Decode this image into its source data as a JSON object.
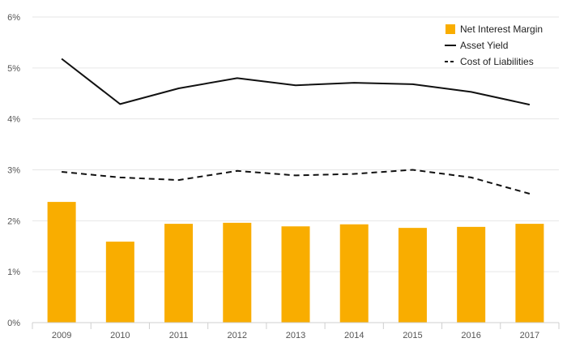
{
  "chart_data": {
    "type": "bar+line",
    "title": "",
    "xlabel": "",
    "ylabel": "",
    "categories": [
      "2009",
      "2010",
      "2011",
      "2012",
      "2013",
      "2014",
      "2015",
      "2016",
      "2017"
    ],
    "ylim": [
      0,
      6
    ],
    "yticks": [
      "0%",
      "1%",
      "2%",
      "3%",
      "4%",
      "5%",
      "6%"
    ],
    "grid": true,
    "legend_position": "top-right",
    "series": [
      {
        "name": "Net Interest Margin",
        "type": "bar",
        "color": "#F9AD00",
        "values": [
          2.37,
          1.59,
          1.94,
          1.96,
          1.89,
          1.93,
          1.86,
          1.88,
          1.94
        ]
      },
      {
        "name": "Asset Yield",
        "type": "line",
        "style": "solid",
        "color": "#111111",
        "values": [
          5.18,
          4.29,
          4.6,
          4.8,
          4.66,
          4.71,
          4.68,
          4.53,
          4.28
        ]
      },
      {
        "name": "Cost of Liabilities",
        "type": "line",
        "style": "dashed",
        "color": "#111111",
        "values": [
          2.96,
          2.85,
          2.8,
          2.98,
          2.89,
          2.92,
          3.0,
          2.85,
          2.53
        ]
      }
    ]
  }
}
